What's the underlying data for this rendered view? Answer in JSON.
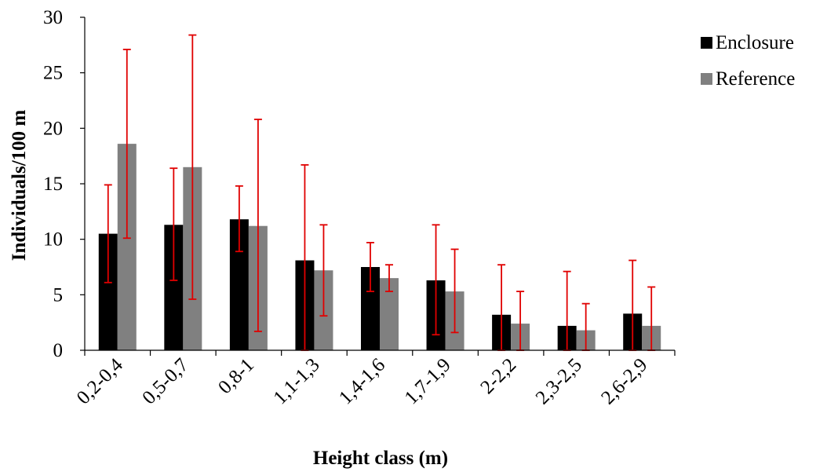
{
  "chart_data": {
    "type": "bar",
    "xlabel": "Height class (m)",
    "ylabel": "Individuals/100 m",
    "ylim": [
      0,
      30
    ],
    "yticks": [
      0,
      5,
      10,
      15,
      20,
      25,
      30
    ],
    "categories": [
      "0,2-0,4",
      "0,5-0,7",
      "0,8-1",
      "1,1-1,3",
      "1,4-1,6",
      "1,7-1,9",
      "2-2,2",
      "2,3-2,5",
      "2,6-2,9"
    ],
    "series": [
      {
        "name": "Enclosure",
        "color": "#000000",
        "values": [
          10.5,
          11.3,
          11.8,
          8.1,
          7.5,
          6.3,
          3.2,
          2.2,
          3.3
        ],
        "error_low": [
          6.1,
          6.3,
          8.9,
          0.0,
          5.3,
          1.4,
          0.0,
          0.0,
          0.0
        ],
        "error_high": [
          14.9,
          16.4,
          14.8,
          16.7,
          9.7,
          11.3,
          7.7,
          7.1,
          8.1
        ]
      },
      {
        "name": "Reference",
        "color": "#808080",
        "values": [
          18.6,
          16.5,
          11.2,
          7.2,
          6.5,
          5.3,
          2.4,
          1.8,
          2.2
        ],
        "error_low": [
          10.1,
          4.6,
          1.7,
          3.1,
          5.3,
          1.6,
          0.0,
          0.0,
          0.0
        ],
        "error_high": [
          27.1,
          28.4,
          20.8,
          11.3,
          7.7,
          9.1,
          5.3,
          4.2,
          5.7
        ]
      }
    ],
    "error_bar_color": "#e00000",
    "legend_position": "right",
    "grid": false
  }
}
